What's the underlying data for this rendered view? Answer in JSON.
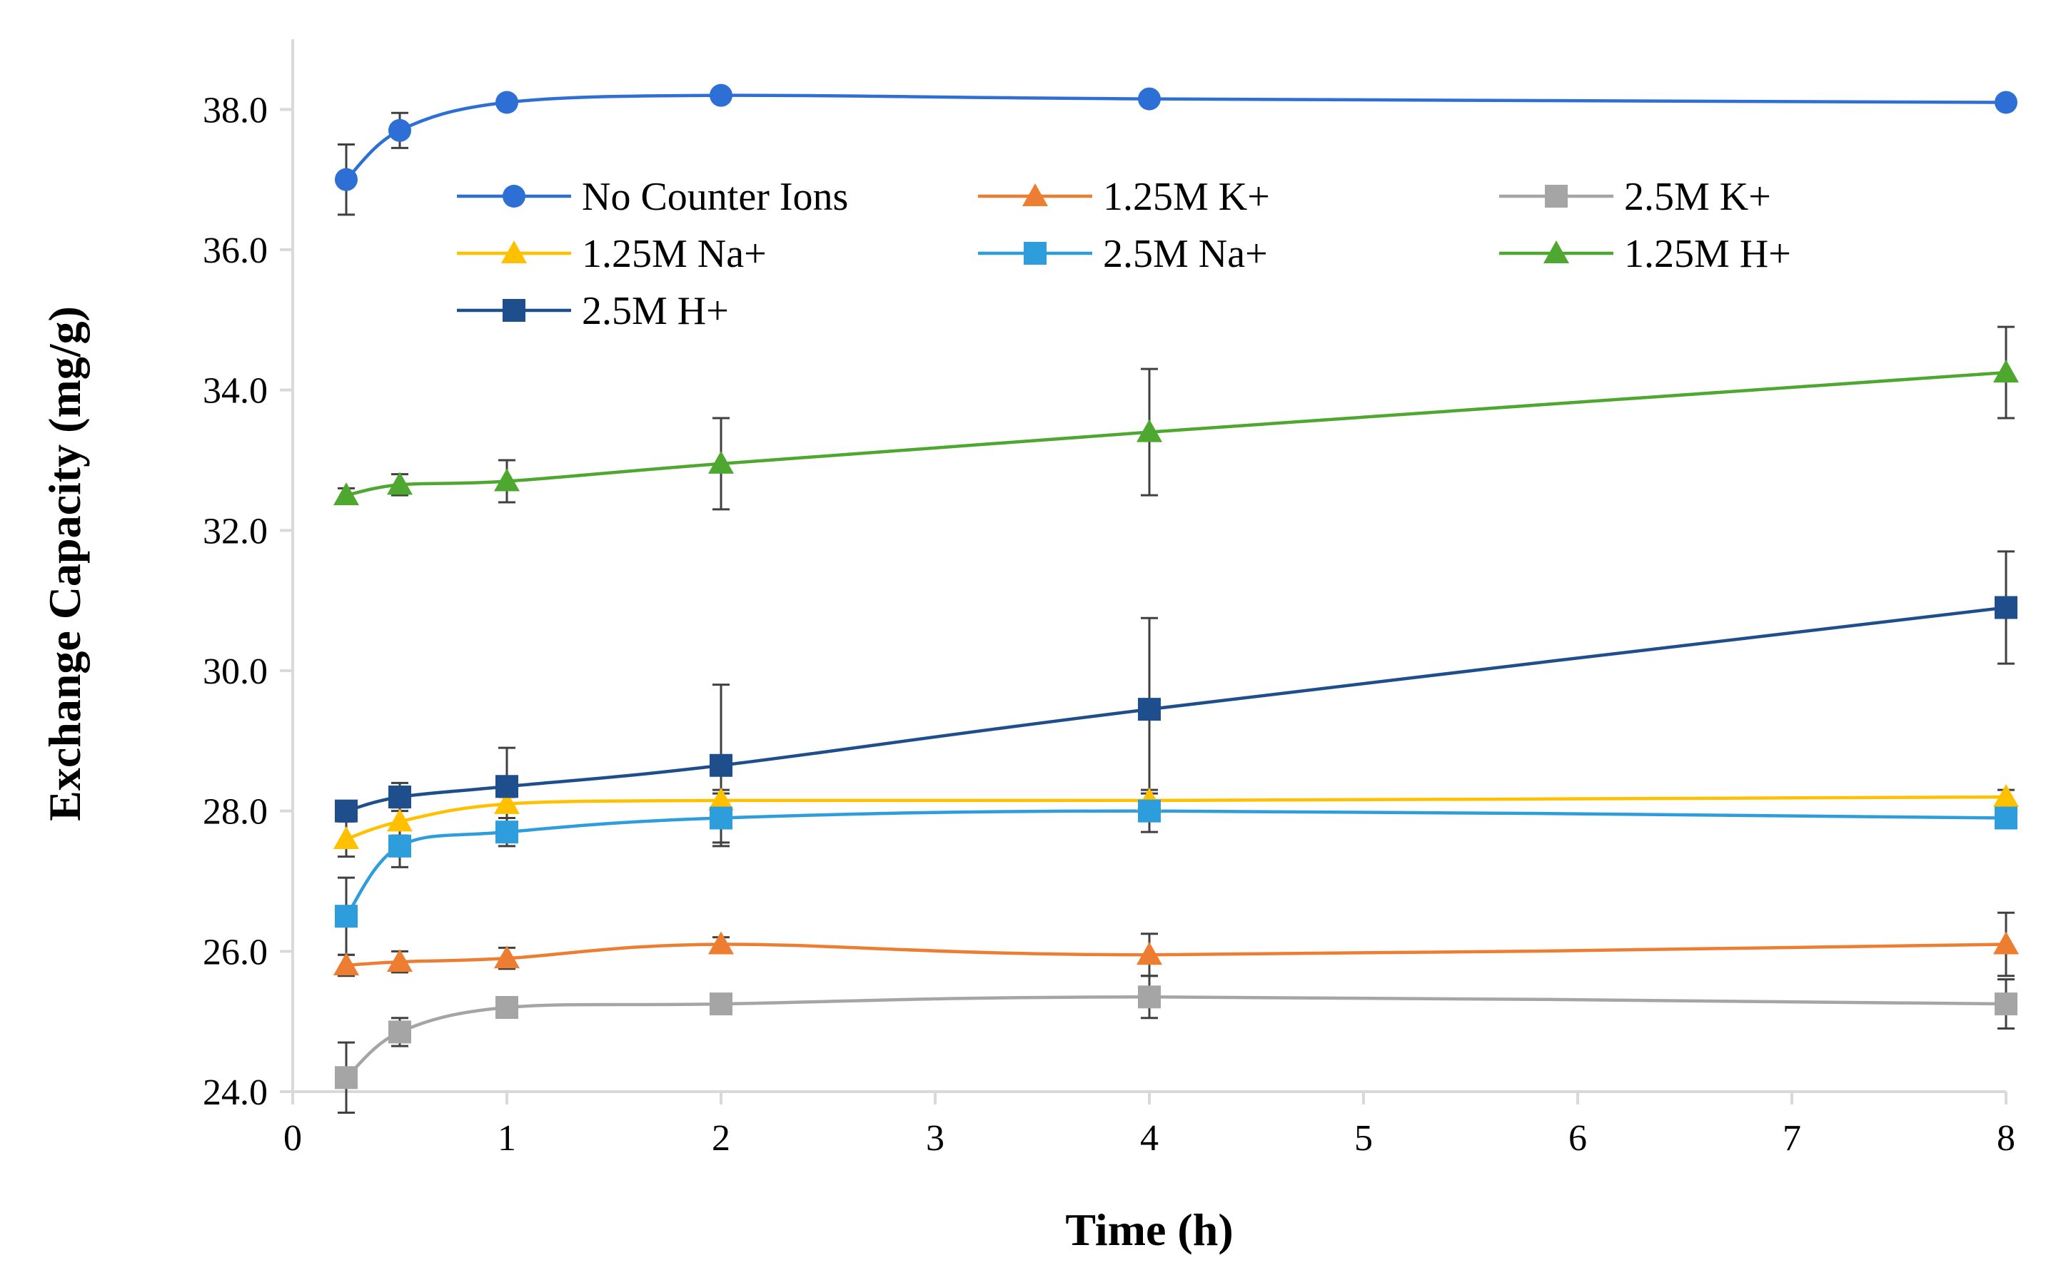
{
  "chart_data": {
    "type": "line",
    "title": "",
    "xlabel": "Time (h)",
    "ylabel": "Exchange Capacity (mg/g)",
    "xlim": [
      0,
      8
    ],
    "ylim": [
      24,
      39
    ],
    "xticks": [
      0,
      1,
      2,
      3,
      4,
      5,
      6,
      7,
      8
    ],
    "xtick_labels": [
      "0",
      "1",
      "2",
      "3",
      "4",
      "5",
      "6",
      "7",
      "8"
    ],
    "yticks": [
      24,
      26,
      28,
      30,
      32,
      34,
      36,
      38
    ],
    "ytick_labels": [
      "24.0",
      "26.0",
      "28.0",
      "30.0",
      "32.0",
      "34.0",
      "36.0",
      "38.0"
    ],
    "grid": false,
    "legend_position": "top",
    "x": [
      0.25,
      0.5,
      1,
      2,
      4,
      8
    ],
    "series": [
      {
        "name": "No Counter Ions",
        "color": "#2e6fd6",
        "marker": "circle",
        "values": [
          37.0,
          37.7,
          38.1,
          38.2,
          38.15,
          38.1
        ],
        "errors": [
          0.5,
          0.25,
          0,
          0,
          0,
          0
        ]
      },
      {
        "name": "1.25M K+",
        "color": "#ed7d31",
        "marker": "triangle",
        "values": [
          25.8,
          25.85,
          25.9,
          26.1,
          25.95,
          26.1
        ],
        "errors": [
          0.15,
          0.15,
          0.15,
          0.1,
          0.3,
          0.45
        ]
      },
      {
        "name": "2.5M K+",
        "color": "#a5a5a5",
        "marker": "square",
        "values": [
          24.2,
          24.85,
          25.2,
          25.25,
          25.35,
          25.25
        ],
        "errors": [
          0.5,
          0.2,
          0,
          0,
          0.3,
          0.35
        ]
      },
      {
        "name": "1.25M Na+",
        "color": "#ffc000",
        "marker": "triangle",
        "values": [
          27.6,
          27.85,
          28.1,
          28.15,
          28.15,
          28.2
        ],
        "errors": [
          0.25,
          0.2,
          0.1,
          0.15,
          0.1,
          0.1
        ]
      },
      {
        "name": "2.5M Na+",
        "color": "#2e9ddb",
        "marker": "square",
        "values": [
          26.5,
          27.5,
          27.7,
          27.9,
          28.0,
          27.9
        ],
        "errors": [
          0.55,
          0.3,
          0.2,
          0.35,
          0.3,
          0
        ]
      },
      {
        "name": "1.25M H+",
        "color": "#4ea72e",
        "marker": "triangle",
        "values": [
          32.5,
          32.65,
          32.7,
          32.95,
          33.4,
          34.25
        ],
        "errors": [
          0.1,
          0.15,
          0.3,
          0.65,
          0.9,
          0.65
        ]
      },
      {
        "name": "2.5M H+",
        "color": "#1f4e8c",
        "marker": "square",
        "values": [
          28.0,
          28.2,
          28.35,
          28.65,
          29.45,
          30.9
        ],
        "errors": [
          0.1,
          0.2,
          0.55,
          1.15,
          1.3,
          0.8
        ]
      }
    ]
  }
}
